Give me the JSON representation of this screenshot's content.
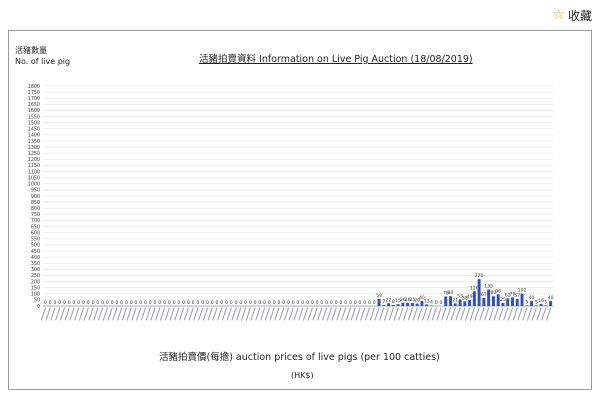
{
  "favorite": {
    "label": "收藏",
    "icon": "star-icon"
  },
  "chart_data": {
    "type": "bar",
    "title": "活豬拍賣資料 Information on Live Pig Auction (18/08/2019)",
    "ylabel_zh": "活豬數量",
    "ylabel_en": "No. of live pig",
    "xlabel": "活豬拍賣價(每擔) auction prices of live pigs (per 100 catties)",
    "xunit": "(HK$)",
    "ylim": [
      0,
      1800
    ],
    "yticks": [
      0,
      50,
      100,
      150,
      200,
      250,
      300,
      350,
      400,
      450,
      500,
      550,
      600,
      650,
      700,
      750,
      800,
      850,
      900,
      950,
      1000,
      1050,
      1100,
      1150,
      1200,
      1250,
      1300,
      1350,
      1400,
      1450,
      1500,
      1550,
      1600,
      1650,
      1700,
      1750,
      1800
    ],
    "grid": true,
    "bar_color": "#2f4fc4",
    "values": [
      0,
      0,
      0,
      0,
      0,
      0,
      0,
      0,
      0,
      0,
      0,
      0,
      0,
      0,
      0,
      0,
      0,
      0,
      0,
      0,
      0,
      0,
      0,
      0,
      0,
      0,
      0,
      0,
      0,
      0,
      0,
      0,
      0,
      0,
      0,
      0,
      0,
      0,
      0,
      0,
      0,
      0,
      0,
      0,
      0,
      0,
      0,
      0,
      0,
      0,
      0,
      0,
      0,
      0,
      0,
      0,
      0,
      0,
      0,
      0,
      0,
      0,
      0,
      0,
      0,
      0,
      0,
      0,
      0,
      0,
      59,
      7,
      22,
      8,
      15,
      26,
      26,
      25,
      20,
      40,
      13,
      4,
      0,
      0,
      78,
      80,
      21,
      53,
      38,
      49,
      120,
      220,
      67,
      135,
      80,
      96,
      25,
      62,
      70,
      57,
      102,
      5,
      40,
      5,
      16,
      5,
      40
    ],
    "labels": [
      "0",
      "0",
      "0",
      "0",
      "0",
      "0",
      "0",
      "0",
      "0",
      "0",
      "0",
      "0",
      "0",
      "0",
      "0",
      "0",
      "0",
      "0",
      "0",
      "0",
      "0",
      "0",
      "0",
      "0",
      "0",
      "0",
      "0",
      "0",
      "0",
      "0",
      "0",
      "0",
      "0",
      "0",
      "0",
      "0",
      "0",
      "0",
      "0",
      "0",
      "0",
      "0",
      "0",
      "0",
      "0",
      "0",
      "0",
      "0",
      "0",
      "0",
      "0",
      "0",
      "0",
      "0",
      "0",
      "0",
      "0",
      "0",
      "0",
      "0",
      "0",
      "0",
      "0",
      "0",
      "0",
      "0",
      "0",
      "0",
      "0",
      "0",
      "59",
      "7",
      "22",
      "8",
      "15",
      "26",
      "26",
      "25",
      "20",
      "40",
      "13",
      "4",
      "0",
      "0",
      "78",
      "80",
      "21",
      "53",
      "38",
      "49",
      "120",
      "220",
      "67",
      "135",
      "80",
      "96",
      "25",
      "62",
      "70",
      "57",
      "102",
      "5",
      "40",
      "5",
      "16",
      "5",
      "40"
    ]
  }
}
